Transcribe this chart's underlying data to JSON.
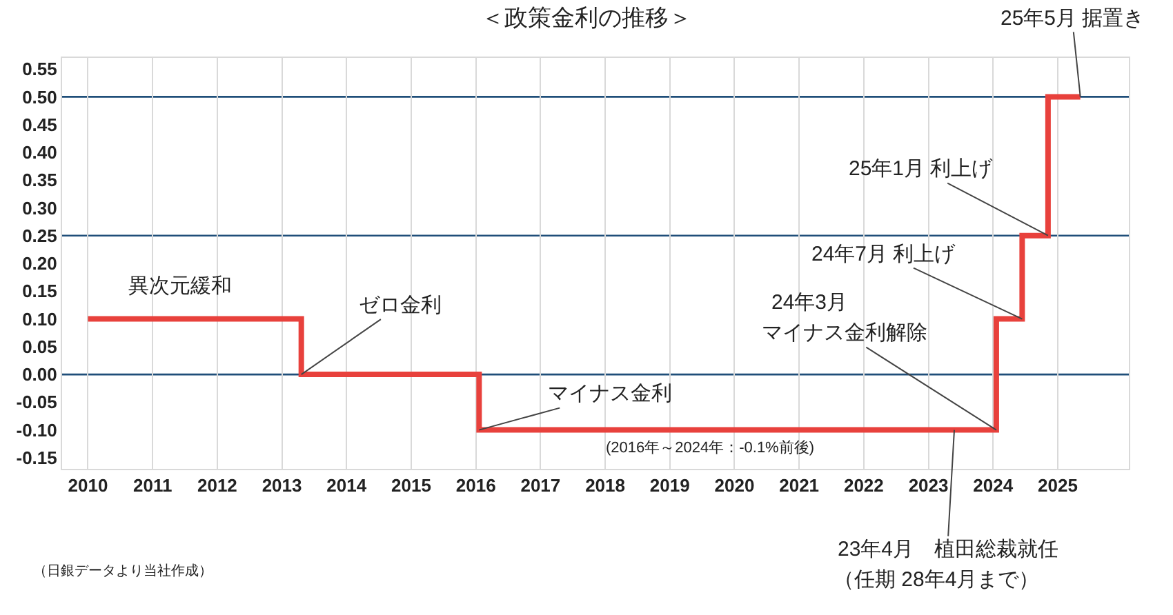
{
  "chart_data": {
    "type": "step",
    "title": "＜政策金利の推移＞",
    "x": [
      2010,
      2013.3,
      2016.05,
      2024.05,
      2024.45,
      2024.85,
      2025.35
    ],
    "series": [
      {
        "color": "#e8413c",
        "values": [
          0.1,
          0,
          -0.1,
          0.1,
          0.25,
          0.5,
          0.5
        ]
      }
    ],
    "xlim": [
      2009.6,
      2026.1
    ],
    "xticks": [
      2010,
      2011,
      2012,
      2013,
      2014,
      2015,
      2016,
      2017,
      2018,
      2019,
      2020,
      2021,
      2022,
      2023,
      2024,
      2025
    ],
    "ylim": [
      -0.17,
      0.57
    ],
    "yticks": [
      {
        "value": -0.15,
        "label": "-0.15"
      },
      {
        "value": -0.1,
        "label": "-0.10"
      },
      {
        "value": -0.05,
        "label": "-0.05"
      },
      {
        "value": 0,
        "label": "0.00"
      },
      {
        "value": 0.05,
        "label": "0.05"
      },
      {
        "value": 0.1,
        "label": "0.10"
      },
      {
        "value": 0.15,
        "label": "0.15"
      },
      {
        "value": 0.2,
        "label": "0.20"
      },
      {
        "value": 0.25,
        "label": "0.25"
      },
      {
        "value": 0.3,
        "label": "0.30"
      },
      {
        "value": 0.35,
        "label": "0.35"
      },
      {
        "value": 0.4,
        "label": "0.40"
      },
      {
        "value": 0.45,
        "label": "0.45"
      },
      {
        "value": 0.5,
        "label": "0.50"
      },
      {
        "value": 0.55,
        "label": "0.55"
      }
    ],
    "ref_lines": [
      {
        "axis": "y",
        "value": 0.5,
        "color": "#1f4e79"
      },
      {
        "axis": "y",
        "value": 0.25,
        "color": "#1f4e79"
      },
      {
        "axis": "y",
        "value": 0,
        "color": "#1f4e79"
      }
    ],
    "grid": "x",
    "marker": "none",
    "line_style": "solid",
    "annotations": [
      "異次元緩和",
      {
        "text": "ゼロ金利",
        "x": 2013.3,
        "y": 0
      },
      {
        "text": "マイナス金利",
        "x": 2016.05,
        "y": -0.1
      },
      "(2016年～2024年：-0.1%前後)",
      "24年3月",
      {
        "text": "マイナス金利解除",
        "x": 2024.05,
        "y": -0.1
      },
      {
        "text": "24年7月 利上げ",
        "x": 2024.45,
        "y": 0.1
      },
      {
        "text": "25年1月 利上げ",
        "x": 2024.85,
        "y": 0.25
      },
      {
        "text": "25年5月 据置き",
        "x": 2025.35,
        "y": 0.5
      },
      {
        "text": "23年4月　植田総裁就任",
        "x": 2023.4,
        "y": -0.1
      },
      "（任期 28年4月まで）",
      "（日銀データより当社作成）"
    ]
  }
}
